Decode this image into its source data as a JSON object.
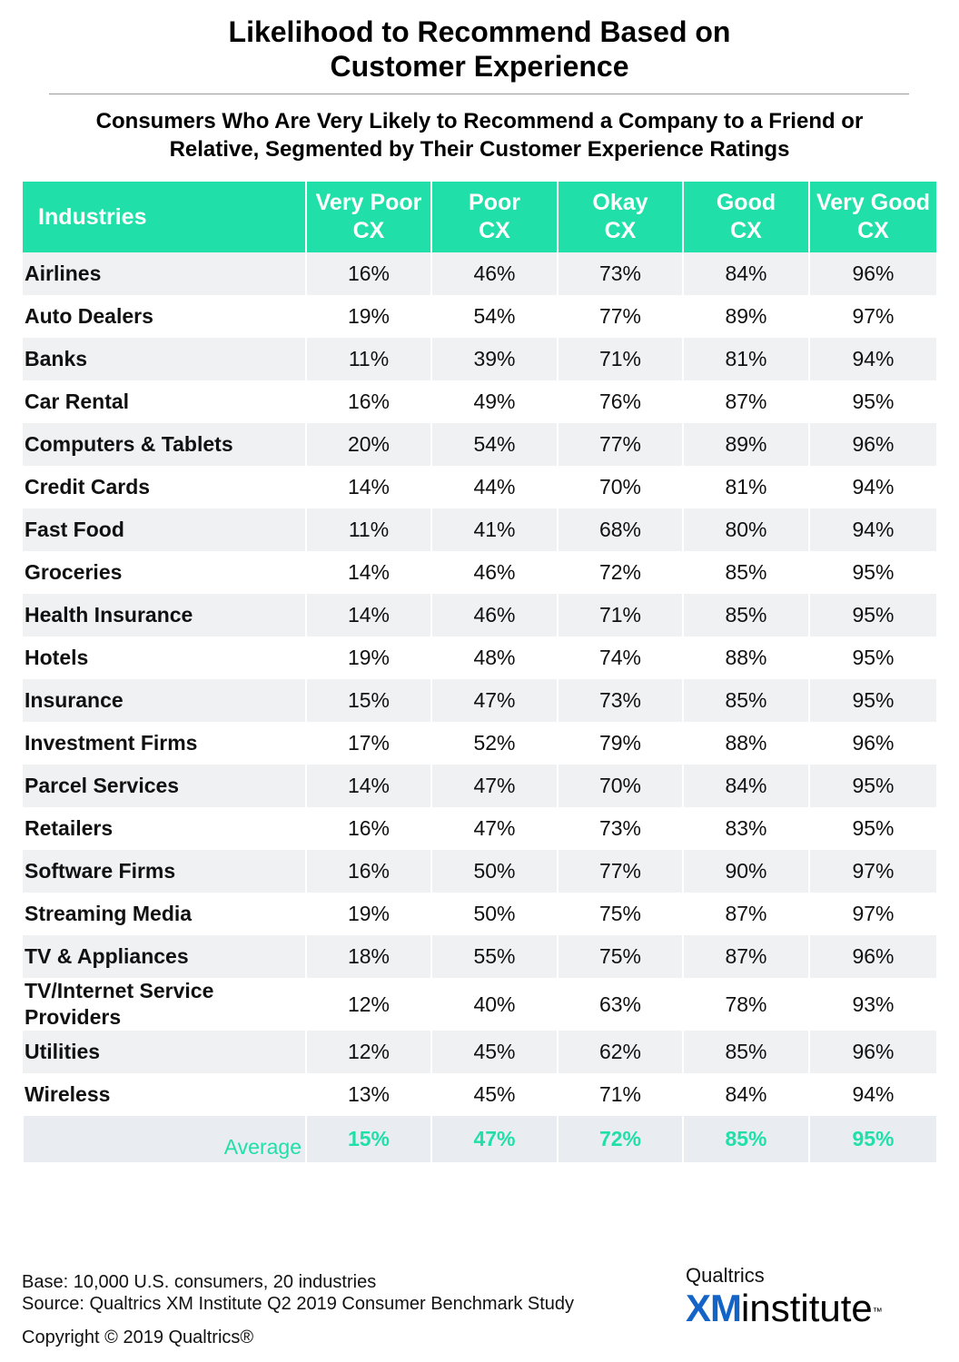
{
  "page": {
    "title_line1": "Likelihood to Recommend Based on",
    "title_line2": "Customer Experience",
    "subtitle_line1": "Consumers Who Are Very Likely to Recommend a Company to a Friend or",
    "subtitle_line2": "Relative, Segmented by Their Customer Experience Ratings"
  },
  "colors": {
    "header_bg": "#20dfa8",
    "header_text": "#ffffff",
    "row_shade": "#f0f1f3",
    "average_text": "#20dfa8",
    "logo_blue": "#1464c7"
  },
  "table": {
    "headers": [
      {
        "line1": "Industries",
        "line2": ""
      },
      {
        "line1": "Very Poor",
        "line2": "CX"
      },
      {
        "line1": "Poor",
        "line2": "CX"
      },
      {
        "line1": "Okay",
        "line2": "CX"
      },
      {
        "line1": "Good",
        "line2": "CX"
      },
      {
        "line1": "Very Good",
        "line2": "CX"
      }
    ],
    "rows": [
      {
        "industry": "Airlines",
        "values": [
          "16%",
          "46%",
          "73%",
          "84%",
          "96%"
        ]
      },
      {
        "industry": "Auto Dealers",
        "values": [
          "19%",
          "54%",
          "77%",
          "89%",
          "97%"
        ]
      },
      {
        "industry": "Banks",
        "values": [
          "11%",
          "39%",
          "71%",
          "81%",
          "94%"
        ]
      },
      {
        "industry": "Car Rental",
        "values": [
          "16%",
          "49%",
          "76%",
          "87%",
          "95%"
        ]
      },
      {
        "industry": "Computers & Tablets",
        "values": [
          "20%",
          "54%",
          "77%",
          "89%",
          "96%"
        ]
      },
      {
        "industry": "Credit Cards",
        "values": [
          "14%",
          "44%",
          "70%",
          "81%",
          "94%"
        ]
      },
      {
        "industry": "Fast Food",
        "values": [
          "11%",
          "41%",
          "68%",
          "80%",
          "94%"
        ]
      },
      {
        "industry": "Groceries",
        "values": [
          "14%",
          "46%",
          "72%",
          "85%",
          "95%"
        ]
      },
      {
        "industry": "Health Insurance",
        "values": [
          "14%",
          "46%",
          "71%",
          "85%",
          "95%"
        ]
      },
      {
        "industry": "Hotels",
        "values": [
          "19%",
          "48%",
          "74%",
          "88%",
          "95%"
        ]
      },
      {
        "industry": "Insurance",
        "values": [
          "15%",
          "47%",
          "73%",
          "85%",
          "95%"
        ]
      },
      {
        "industry": "Investment Firms",
        "values": [
          "17%",
          "52%",
          "79%",
          "88%",
          "96%"
        ]
      },
      {
        "industry": "Parcel Services",
        "values": [
          "14%",
          "47%",
          "70%",
          "84%",
          "95%"
        ]
      },
      {
        "industry": "Retailers",
        "values": [
          "16%",
          "47%",
          "73%",
          "83%",
          "95%"
        ]
      },
      {
        "industry": "Software Firms",
        "values": [
          "16%",
          "50%",
          "77%",
          "90%",
          "97%"
        ]
      },
      {
        "industry": "Streaming Media",
        "values": [
          "19%",
          "50%",
          "75%",
          "87%",
          "97%"
        ]
      },
      {
        "industry": "TV & Appliances",
        "values": [
          "18%",
          "55%",
          "75%",
          "87%",
          "96%"
        ]
      },
      {
        "industry": "TV/Internet Service Providers",
        "values": [
          "12%",
          "40%",
          "63%",
          "78%",
          "93%"
        ]
      },
      {
        "industry": "Utilities",
        "values": [
          "12%",
          "45%",
          "62%",
          "85%",
          "96%"
        ]
      },
      {
        "industry": "Wireless",
        "values": [
          "13%",
          "45%",
          "71%",
          "84%",
          "94%"
        ]
      }
    ],
    "average": {
      "label": "Average",
      "values": [
        "15%",
        "47%",
        "72%",
        "85%",
        "95%"
      ]
    }
  },
  "chart_data": {
    "type": "table",
    "title": "Likelihood to Recommend Based on Customer Experience",
    "subtitle": "Consumers Who Are Very Likely to Recommend a Company to a Friend or Relative, Segmented by Their Customer Experience Ratings",
    "columns": [
      "Industries",
      "Very Poor CX",
      "Poor CX",
      "Okay CX",
      "Good CX",
      "Very Good CX"
    ],
    "rows": [
      [
        "Airlines",
        16,
        46,
        73,
        84,
        96
      ],
      [
        "Auto Dealers",
        19,
        54,
        77,
        89,
        97
      ],
      [
        "Banks",
        11,
        39,
        71,
        81,
        94
      ],
      [
        "Car Rental",
        16,
        49,
        76,
        87,
        95
      ],
      [
        "Computers & Tablets",
        20,
        54,
        77,
        89,
        96
      ],
      [
        "Credit Cards",
        14,
        44,
        70,
        81,
        94
      ],
      [
        "Fast Food",
        11,
        41,
        68,
        80,
        94
      ],
      [
        "Groceries",
        14,
        46,
        72,
        85,
        95
      ],
      [
        "Health Insurance",
        14,
        46,
        71,
        85,
        95
      ],
      [
        "Hotels",
        19,
        48,
        74,
        88,
        95
      ],
      [
        "Insurance",
        15,
        47,
        73,
        85,
        95
      ],
      [
        "Investment Firms",
        17,
        52,
        79,
        88,
        96
      ],
      [
        "Parcel Services",
        14,
        47,
        70,
        84,
        95
      ],
      [
        "Retailers",
        16,
        47,
        73,
        83,
        95
      ],
      [
        "Software Firms",
        16,
        50,
        77,
        90,
        97
      ],
      [
        "Streaming Media",
        19,
        50,
        75,
        87,
        97
      ],
      [
        "TV & Appliances",
        18,
        55,
        75,
        87,
        96
      ],
      [
        "TV/Internet Service Providers",
        12,
        40,
        63,
        78,
        93
      ],
      [
        "Utilities",
        12,
        45,
        62,
        85,
        96
      ],
      [
        "Wireless",
        13,
        45,
        71,
        84,
        94
      ]
    ],
    "average": [
      "Average",
      15,
      47,
      72,
      85,
      95
    ]
  },
  "footer": {
    "base": "Base: 10,000 U.S. consumers, 20 industries",
    "source": "Source: Qualtrics XM Institute Q2 2019 Consumer Benchmark Study",
    "copyright": "Copyright © 2019 Qualtrics®"
  },
  "logo": {
    "top": "Qualtrics",
    "xm": "XM",
    "institute": "institute",
    "tm": "™"
  }
}
